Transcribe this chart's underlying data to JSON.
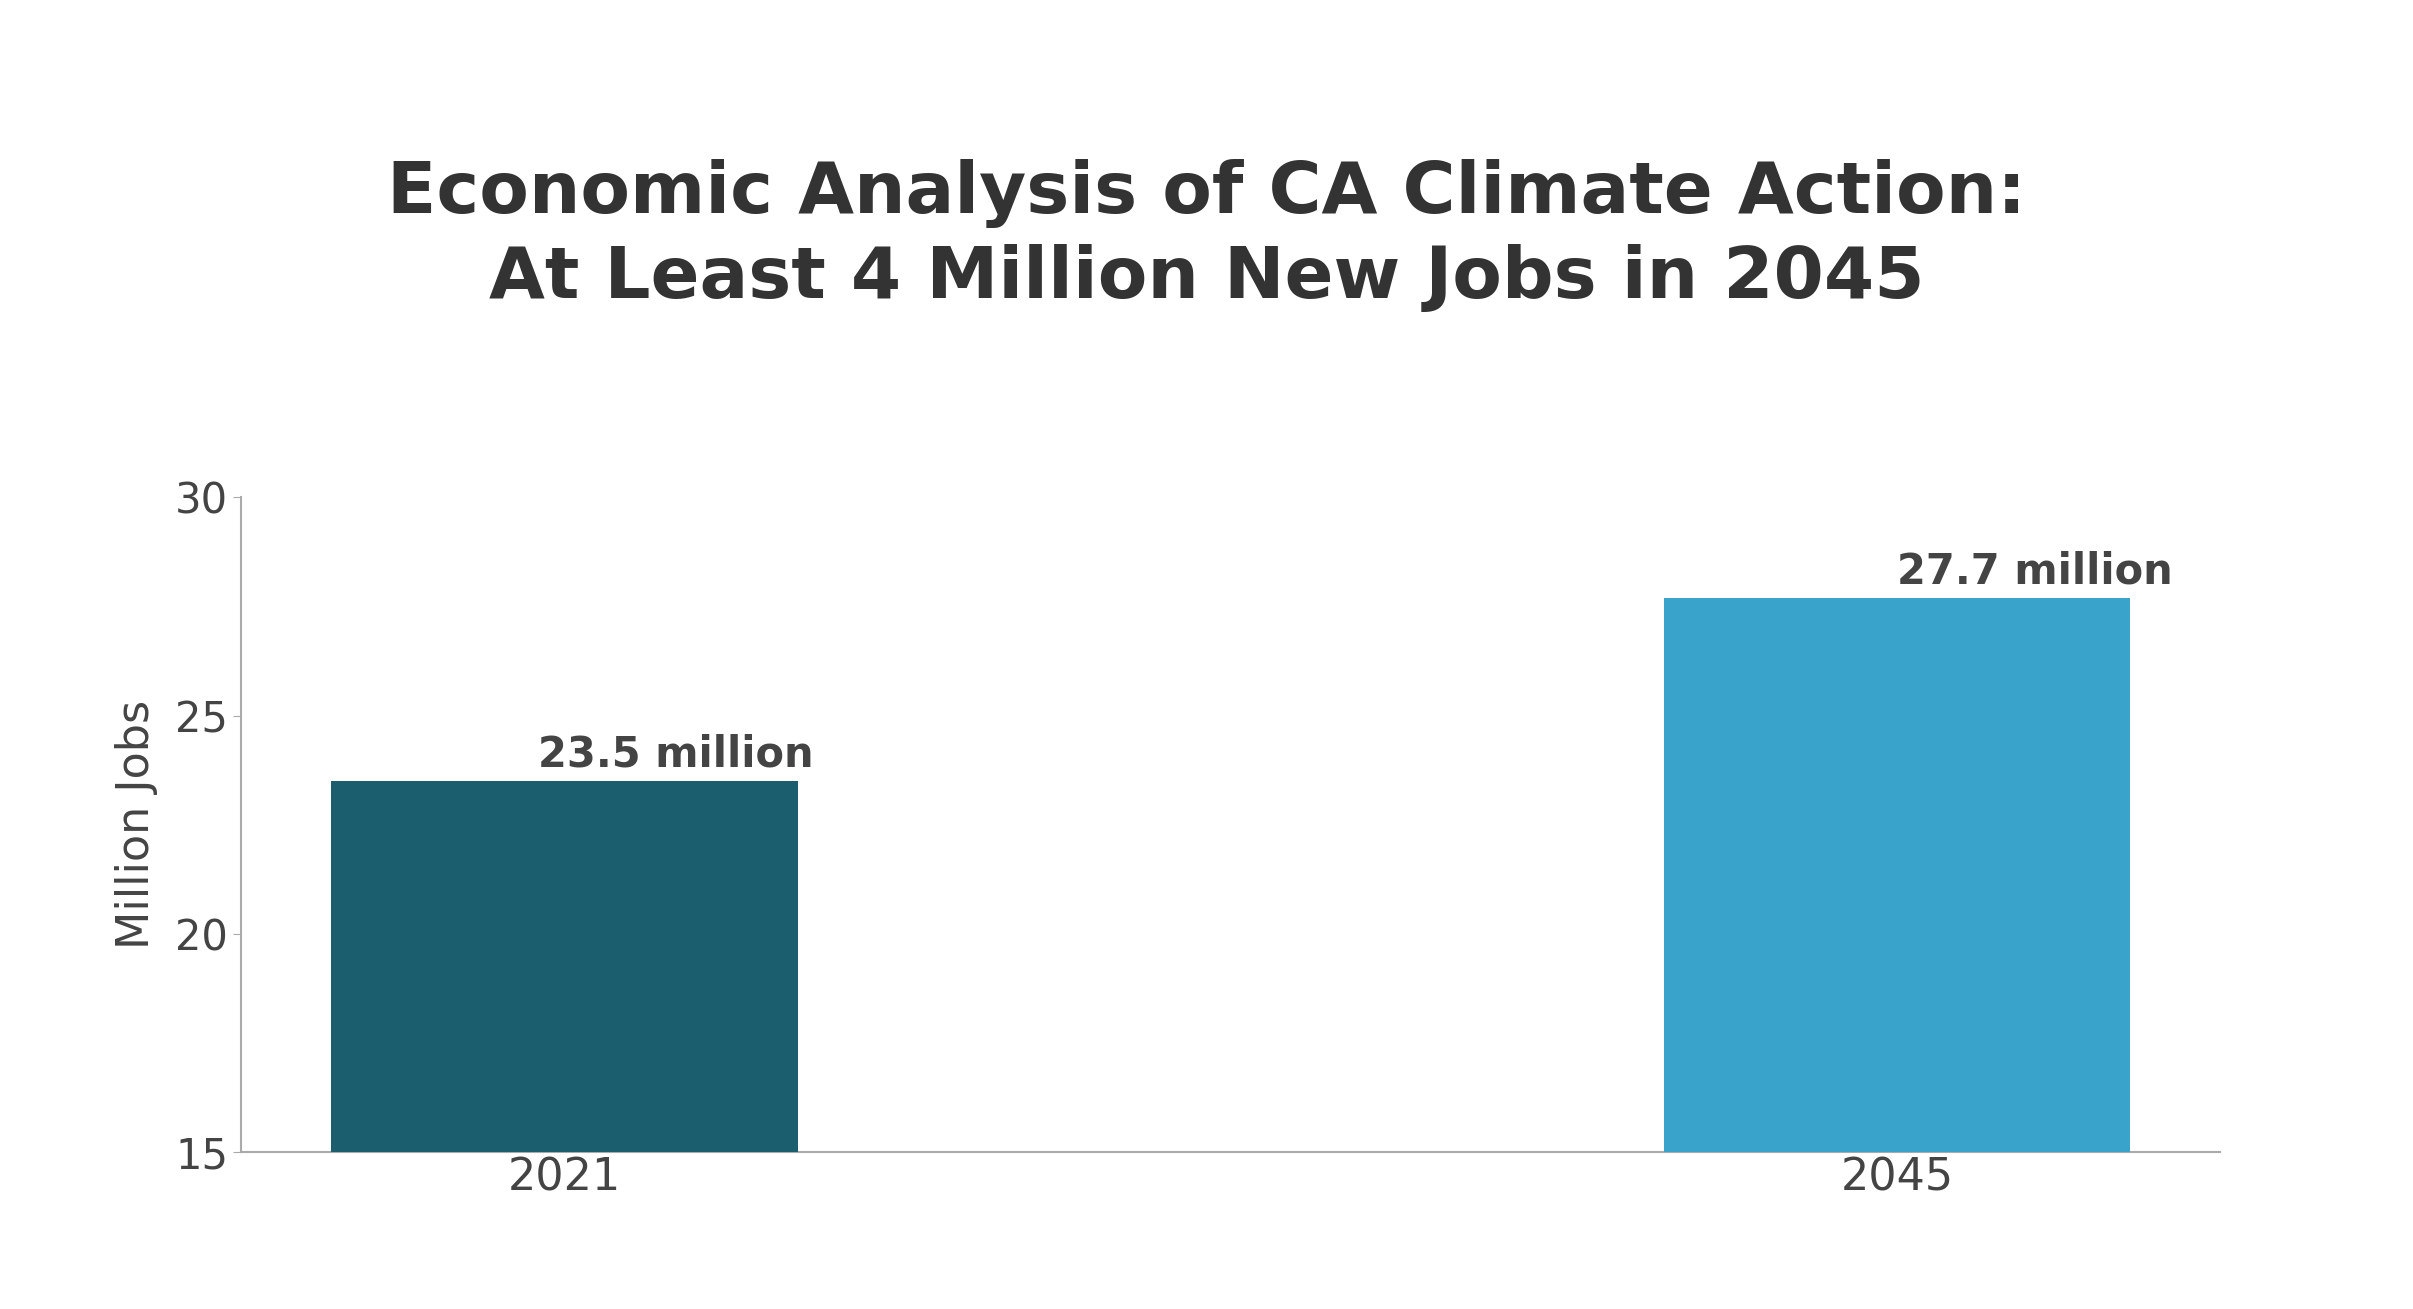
{
  "title": "Economic Analysis of CA Climate Action:\nAt Least 4 Million New Jobs in 2045",
  "categories": [
    "2021",
    "2045"
  ],
  "values": [
    23.5,
    27.7
  ],
  "bar_colors": [
    "#1b5e6e",
    "#3aa3cc"
  ],
  "bar_labels": [
    "23.5 million",
    "27.7 million"
  ],
  "ylabel": "Million Jobs",
  "ylim": [
    15,
    30
  ],
  "yticks": [
    15,
    20,
    25,
    30
  ],
  "title_fontsize": 52,
  "label_fontsize": 32,
  "tick_fontsize": 30,
  "ylabel_fontsize": 32,
  "annotation_fontsize": 30,
  "background_color": "#ffffff",
  "bar_width": 0.35,
  "text_color": "#444444",
  "title_color": "#333333",
  "spine_color": "#aaaaaa"
}
